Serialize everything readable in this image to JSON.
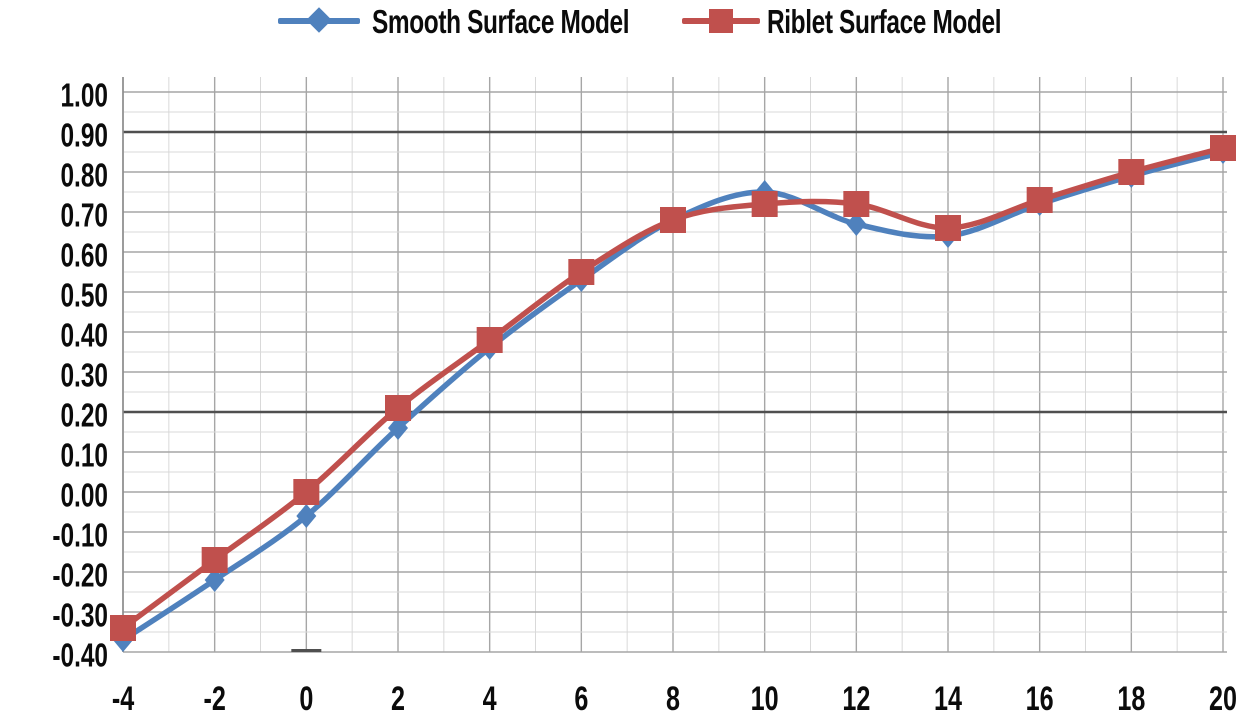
{
  "colors": {
    "smooth_series": "#4F81BD",
    "riblet_series": "#C0504D",
    "grid_minor": "#d9d9d9",
    "grid_major": "#a6a6a6",
    "grid_dark": "#4f4f4f",
    "text": "#0b0b0b",
    "background": "#ffffff"
  },
  "chart_data": {
    "type": "line",
    "title": "",
    "xlabel": "",
    "ylabel": "",
    "grid": true,
    "legend_position": "top-center",
    "xlim": [
      -4,
      20
    ],
    "ylim": [
      -0.4,
      1.0
    ],
    "x": [
      -4,
      -2,
      0,
      2,
      4,
      6,
      8,
      10,
      12,
      14,
      16,
      18,
      20
    ],
    "x_tick_labels": [
      "-4",
      "-2",
      "0",
      "2",
      "4",
      "6",
      "8",
      "10",
      "12",
      "14",
      "16",
      "18",
      "20"
    ],
    "y_tick_labels": [
      "1.00",
      "0.90",
      "0.80",
      "0.70",
      "0.60",
      "0.50",
      "0.40",
      "0.30",
      "0.20",
      "0.10",
      "0.00",
      "-0.10",
      "-0.20",
      "-0.30",
      "-0.40"
    ],
    "y_major_step": 0.1,
    "y_minor_step": 0.05,
    "x_gridline_step": 1,
    "dark_horizontal_gridlines_at": [
      0.9,
      0.2
    ],
    "series": [
      {
        "name": "Smooth Surface Model",
        "color": "#4F81BD",
        "marker": "diamond",
        "values": [
          -0.37,
          -0.22,
          -0.06,
          0.16,
          0.36,
          0.53,
          0.68,
          0.75,
          0.67,
          0.64,
          0.72,
          0.79,
          0.85
        ]
      },
      {
        "name": "Riblet Surface Model",
        "color": "#C0504D",
        "marker": "square",
        "values": [
          -0.34,
          -0.17,
          0.0,
          0.21,
          0.38,
          0.55,
          0.68,
          0.72,
          0.72,
          0.66,
          0.73,
          0.8,
          0.86
        ]
      }
    ]
  }
}
